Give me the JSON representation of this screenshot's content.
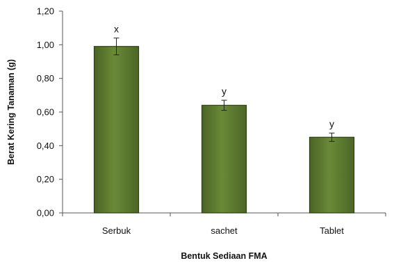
{
  "chart_data": {
    "type": "bar",
    "categories": [
      "Serbuk",
      "sachet",
      "Tablet"
    ],
    "values": [
      0.99,
      0.64,
      0.45
    ],
    "error": [
      0.05,
      0.03,
      0.025
    ],
    "significance_labels": [
      "x",
      "y",
      "y"
    ],
    "xlabel": "Bentuk Sediaan FMA",
    "ylabel": "Berat Kering Tanaman (g)",
    "ylim": [
      0,
      1.2
    ],
    "yticks": [
      "0,00",
      "0,20",
      "0,40",
      "0,60",
      "0,80",
      "1,00",
      "1,20"
    ],
    "grid": false,
    "colors": {
      "bar_fill": "#5d7a30",
      "bar_edge": "#2e3f14",
      "axis": "#555555"
    }
  }
}
